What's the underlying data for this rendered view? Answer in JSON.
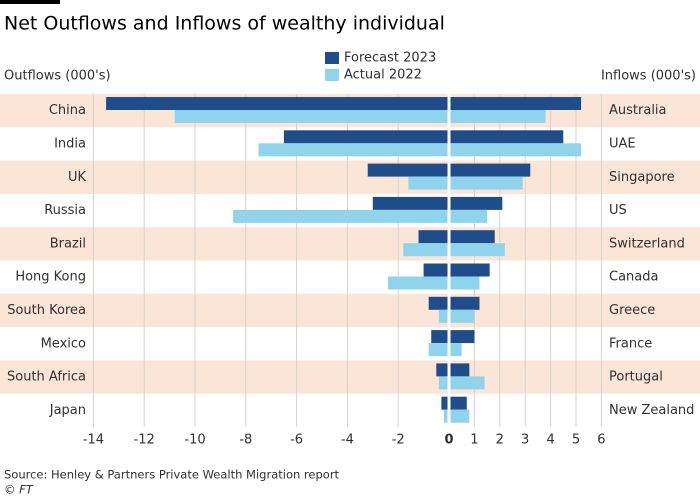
{
  "chart_data": {
    "type": "diverging-bar",
    "title": "Net Outflows and Inflows of wealthy individual",
    "left_axis_label": "Outflows (000's)",
    "right_axis_label": "Inflows (000's)",
    "left_categories": [
      "China",
      "India",
      "UK",
      "Russia",
      "Brazil",
      "Hong Kong",
      "South Korea",
      "Mexico",
      "South Africa",
      "Japan"
    ],
    "right_categories": [
      "Australia",
      "UAE",
      "Singapore",
      "US",
      "Switzerland",
      "Canada",
      "Greece",
      "France",
      "Portugal",
      "New Zealand"
    ],
    "series": [
      {
        "name": "Forecast 2023",
        "color": "#1e4d8a",
        "outflows": [
          -13.5,
          -6.5,
          -3.2,
          -3.0,
          -1.2,
          -1.0,
          -0.8,
          -0.7,
          -0.5,
          -0.3
        ],
        "inflows": [
          5.2,
          4.5,
          3.2,
          2.1,
          1.8,
          1.6,
          1.2,
          1.0,
          0.8,
          0.7
        ]
      },
      {
        "name": "Actual 2022",
        "color": "#8fd4ea",
        "outflows": [
          -10.8,
          -7.5,
          -1.6,
          -8.5,
          -1.8,
          -2.4,
          -0.4,
          -0.8,
          -0.4,
          -0.2
        ],
        "inflows": [
          3.8,
          5.2,
          2.9,
          1.5,
          2.2,
          1.2,
          1.0,
          0.5,
          1.4,
          0.8
        ]
      }
    ],
    "xlim": [
      -14,
      6
    ],
    "xticks": [
      -14,
      -12,
      -10,
      -8,
      -6,
      -4,
      -2,
      0,
      1,
      2,
      3,
      4,
      5,
      6
    ],
    "grid": true,
    "band_color": "#fbe5d6",
    "source": "Source: Henley & Partners Private Wealth Migration report",
    "credit": "© FT"
  }
}
